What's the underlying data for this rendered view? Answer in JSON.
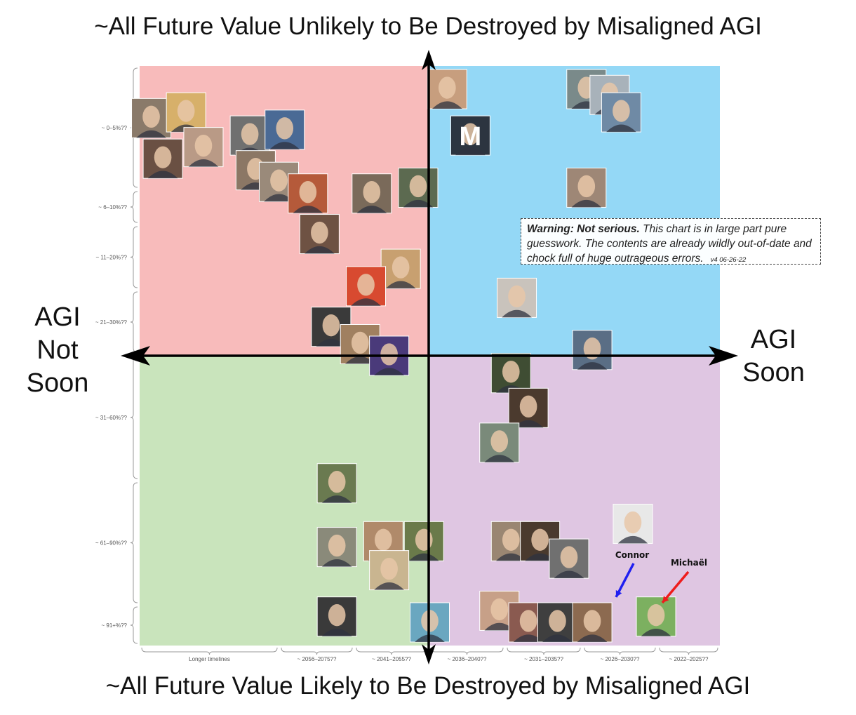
{
  "titles": {
    "top": "~All Future Value Unlikely to Be Destroyed by Misaligned AGI",
    "bottom": "~All Future Value Likely to Be Destroyed by Misaligned AGI",
    "left": "AGI Not Soon",
    "right": "AGI Soon"
  },
  "warning": {
    "bold": "Warning: Not serious.",
    "text": " This chart is in large part pure guesswork. The contents are already wildly out-of-date and chock full of huge outrageous errors.",
    "version": "v4 06-26-22"
  },
  "chart_data": {
    "type": "scatter",
    "x_axis": {
      "direction": "AGI Not Soon (left) to AGI Soon (right)",
      "categories": [
        "Longer timelines",
        "~ 2056–2075??",
        "~ 2041–2055??",
        "~ 2036–2040??",
        "~ 2031–2035??",
        "~ 2026–2030??",
        "~ 2022–2025??"
      ]
    },
    "y_axis": {
      "direction": "top to bottom: increasing likelihood future value destroyed",
      "categories": [
        "~ 0–5%??",
        "~ 6–10%??",
        "~ 11–20%??",
        "~ 21–30%??",
        "~ 31–60%??",
        "~ 61–90%??",
        "~ 91+%??"
      ]
    },
    "quadrants": [
      {
        "position": "top-left",
        "color": "#f8bbbb"
      },
      {
        "position": "top-right",
        "color": "#94d8f6"
      },
      {
        "position": "bottom-left",
        "color": "#c9e4bc"
      },
      {
        "position": "bottom-right",
        "color": "#dfc6e2"
      }
    ],
    "annotations": [
      {
        "text": "Connor",
        "arrow_color": "#1f1ff0"
      },
      {
        "text": "Michaël",
        "arrow_color": "#ee1c1c"
      }
    ],
    "points": [
      {
        "x": 0.02,
        "y": 0.09,
        "fill": "#8a7a6a"
      },
      {
        "x": 0.08,
        "y": 0.08,
        "fill": "#d7b06a"
      },
      {
        "x": 0.04,
        "y": 0.16,
        "fill": "#6a5043"
      },
      {
        "x": 0.11,
        "y": 0.14,
        "fill": "#b99a86"
      },
      {
        "x": 0.19,
        "y": 0.12,
        "fill": "#6f7070"
      },
      {
        "x": 0.25,
        "y": 0.11,
        "fill": "#4a6a95"
      },
      {
        "x": 0.2,
        "y": 0.18,
        "fill": "#8b7765"
      },
      {
        "x": 0.24,
        "y": 0.2,
        "fill": "#9a8a7a"
      },
      {
        "x": 0.29,
        "y": 0.22,
        "fill": "#b55a3a"
      },
      {
        "x": 0.31,
        "y": 0.29,
        "fill": "#6e5243"
      },
      {
        "x": 0.4,
        "y": 0.22,
        "fill": "#7a6a5a"
      },
      {
        "x": 0.48,
        "y": 0.21,
        "fill": "#5c6a50"
      },
      {
        "x": 0.45,
        "y": 0.35,
        "fill": "#c8a070"
      },
      {
        "x": 0.39,
        "y": 0.38,
        "fill": "#d84a30"
      },
      {
        "x": 0.33,
        "y": 0.45,
        "fill": "#3a3a3a"
      },
      {
        "x": 0.38,
        "y": 0.48,
        "fill": "#a08060"
      },
      {
        "x": 0.43,
        "y": 0.5,
        "fill": "#4a3a7a"
      },
      {
        "x": 0.53,
        "y": 0.04,
        "fill": "#c79e7e"
      },
      {
        "x": 0.57,
        "y": 0.12,
        "fill": "#2c3540"
      },
      {
        "x": 0.77,
        "y": 0.04,
        "fill": "#7a8a8a"
      },
      {
        "x": 0.81,
        "y": 0.05,
        "fill": "#a8b2ba"
      },
      {
        "x": 0.83,
        "y": 0.08,
        "fill": "#6f8aa5"
      },
      {
        "x": 0.77,
        "y": 0.21,
        "fill": "#9e8776"
      },
      {
        "x": 0.65,
        "y": 0.4,
        "fill": "#c9c3bc"
      },
      {
        "x": 0.78,
        "y": 0.49,
        "fill": "#5a6e85"
      },
      {
        "x": 0.64,
        "y": 0.53,
        "fill": "#3f4d33"
      },
      {
        "x": 0.67,
        "y": 0.59,
        "fill": "#4b3a2e"
      },
      {
        "x": 0.62,
        "y": 0.65,
        "fill": "#7a8a7a"
      },
      {
        "x": 0.34,
        "y": 0.72,
        "fill": "#6a7a50"
      },
      {
        "x": 0.34,
        "y": 0.83,
        "fill": "#8a8a7a"
      },
      {
        "x": 0.42,
        "y": 0.82,
        "fill": "#b08a6a"
      },
      {
        "x": 0.49,
        "y": 0.82,
        "fill": "#6a7a4a"
      },
      {
        "x": 0.43,
        "y": 0.87,
        "fill": "#c9b590"
      },
      {
        "x": 0.34,
        "y": 0.95,
        "fill": "#3a3a3a"
      },
      {
        "x": 0.5,
        "y": 0.96,
        "fill": "#6aa7c0"
      },
      {
        "x": 0.64,
        "y": 0.82,
        "fill": "#9a8672"
      },
      {
        "x": 0.69,
        "y": 0.82,
        "fill": "#4a3a2e"
      },
      {
        "x": 0.74,
        "y": 0.85,
        "fill": "#707070"
      },
      {
        "x": 0.85,
        "y": 0.79,
        "fill": "#e8e8e8"
      },
      {
        "x": 0.62,
        "y": 0.94,
        "fill": "#c7a088"
      },
      {
        "x": 0.67,
        "y": 0.96,
        "fill": "#8a5a50"
      },
      {
        "x": 0.72,
        "y": 0.96,
        "fill": "#3f3f3f"
      },
      {
        "x": 0.78,
        "y": 0.96,
        "fill": "#8c6a50"
      },
      {
        "x": 0.89,
        "y": 0.95,
        "fill": "#7cb060"
      }
    ],
    "photo_letters": [
      {
        "text": "M",
        "x": 0.57,
        "y": 0.12
      }
    ]
  }
}
